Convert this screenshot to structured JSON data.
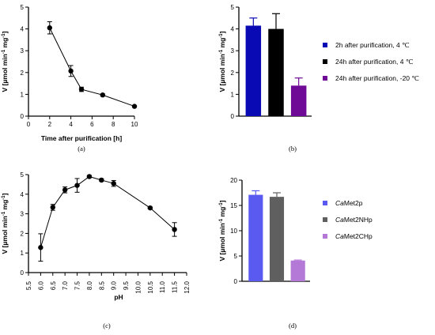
{
  "chart_data": [
    {
      "panel": "a",
      "type": "line",
      "caption": "(a)",
      "xlabel": "Time after purification [h]",
      "ylabel": "V [µmol min⁻¹ mg⁻¹]",
      "xlim": [
        0,
        10
      ],
      "ylim": [
        0,
        5
      ],
      "xticks": [
        0,
        2,
        4,
        6,
        8,
        10
      ],
      "yticks": [
        0,
        1,
        2,
        3,
        4,
        5
      ],
      "x": [
        2,
        4,
        5,
        7,
        10
      ],
      "values": [
        4.05,
        2.07,
        1.23,
        0.97,
        0.45
      ],
      "errors": [
        0.28,
        0.25,
        0.1,
        0.05,
        0.03
      ]
    },
    {
      "panel": "b",
      "type": "bar",
      "caption": "(b)",
      "ylabel": "V [µmol min⁻¹ mg⁻¹]",
      "ylim": [
        0,
        5
      ],
      "yticks": [
        0,
        1,
        2,
        3,
        4,
        5
      ],
      "categories": [
        "2h after purification, 4 ℃",
        "24h after purification, 4 ℃",
        "24h after purification, -20 ℃"
      ],
      "values": [
        4.15,
        4.0,
        1.4
      ],
      "errors": [
        0.35,
        0.7,
        0.35
      ],
      "colors": [
        "#0a0ab4",
        "#000000",
        "#6e0a96"
      ],
      "legend": [
        "2h after purification, 4 ℃",
        "24h after purification, 4 ℃",
        "24h after purification, -20 ℃"
      ]
    },
    {
      "panel": "c",
      "type": "line",
      "caption": "(c)",
      "xlabel": "pH",
      "ylabel": "V [µmol min⁻¹ mg⁻¹]",
      "xlim": [
        5.5,
        12.0
      ],
      "ylim": [
        0,
        5
      ],
      "xticks": [
        "5.5",
        "6.0",
        "6.5",
        "7.0",
        "7.5",
        "8.0",
        "8.5",
        "9.0",
        "9.5",
        "10.0",
        "10.5",
        "11.0",
        "11.5",
        "12.0"
      ],
      "yticks": [
        0,
        1,
        2,
        3,
        4,
        5
      ],
      "x": [
        6.0,
        6.5,
        7.0,
        7.5,
        8.0,
        8.5,
        9.0,
        10.5,
        11.5
      ],
      "values": [
        1.28,
        3.33,
        4.22,
        4.45,
        4.9,
        4.72,
        4.55,
        3.3,
        2.2
      ],
      "errors": [
        0.7,
        0.15,
        0.15,
        0.35,
        0.06,
        0.06,
        0.15,
        0.05,
        0.35
      ]
    },
    {
      "panel": "d",
      "type": "bar",
      "caption": "(d)",
      "ylabel": "V [µmol min⁻¹ mg⁻¹]",
      "ylim": [
        0,
        20
      ],
      "yticks": [
        0,
        5,
        10,
        15,
        20
      ],
      "categories": [
        "CaMet2p",
        "CaMet2NHp",
        "CaMet2CHp"
      ],
      "values": [
        17.1,
        16.7,
        4.1
      ],
      "errors": [
        0.8,
        0.8,
        0.1
      ],
      "colors": [
        "#5a5af0",
        "#5f5f5f",
        "#b478d7"
      ],
      "legend": [
        "CaMet2p",
        "CaMet2NHp",
        "CaMet2CHp"
      ]
    }
  ]
}
